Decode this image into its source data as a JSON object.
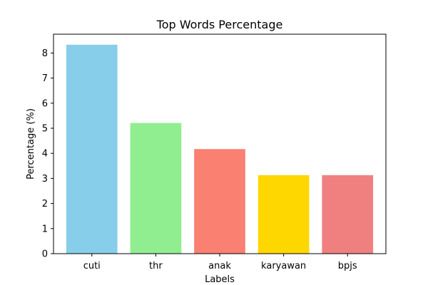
{
  "chart_data": {
    "type": "bar",
    "title": "Top Words Percentage",
    "xlabel": "Labels",
    "ylabel": "Percentage (%)",
    "categories": [
      "cuti",
      "thr",
      "anak",
      "karyawan",
      "bpjs"
    ],
    "values": [
      8.33,
      5.21,
      4.17,
      3.13,
      3.13
    ],
    "colors": [
      "#87ceeb",
      "#90ee90",
      "#fa8072",
      "#ffd700",
      "#f08080"
    ],
    "ylim": [
      0,
      8.75
    ],
    "yticks": [
      0,
      1,
      2,
      3,
      4,
      5,
      6,
      7,
      8
    ],
    "grid": false
  }
}
